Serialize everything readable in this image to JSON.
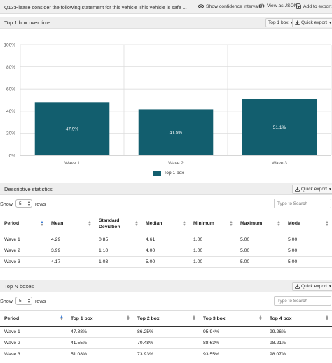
{
  "topbar": {
    "question": "Q13:Please consider the following statement for this vehicle This vehicle is safe ...",
    "show_ci": "Show confidence intervals",
    "view_json": "View as JSON",
    "add_export": "Add to export"
  },
  "chart_section": {
    "title": "Top 1 box over time",
    "dropdown": "Top 1 box",
    "quick_export": "Quick export"
  },
  "chart_data": {
    "type": "bar",
    "categories": [
      "Wave 1",
      "Wave 2",
      "Wave 3"
    ],
    "series": [
      {
        "name": "Top 1 box",
        "values": [
          47.9,
          41.5,
          51.1
        ]
      }
    ],
    "value_labels": [
      "47.9%",
      "41.5%",
      "51.1%"
    ],
    "y_ticks": [
      "0%",
      "20%",
      "40%",
      "60%",
      "80%",
      "100%"
    ],
    "ylim": [
      0,
      100
    ],
    "color": "#125e6e",
    "legend_position": "bottom",
    "grid": true
  },
  "desc_section": {
    "title": "Descriptive statistics",
    "quick_export": "Quick export",
    "show_label": "Show",
    "rows_value": "5",
    "rows_label": "rows",
    "search_placeholder": "Type to Search",
    "columns": [
      "Period",
      "Mean",
      "Standard Deviation",
      "Median",
      "Minimum",
      "Maximum",
      "Mode"
    ],
    "rows": [
      [
        "Wave 1",
        "4.29",
        "0.85",
        "4.61",
        "1.00",
        "5.00",
        "5.00"
      ],
      [
        "Wave 2",
        "3.99",
        "1.10",
        "4.00",
        "1.00",
        "5.00",
        "5.00"
      ],
      [
        "Wave 3",
        "4.17",
        "1.03",
        "5.00",
        "1.00",
        "5.00",
        "5.00"
      ]
    ]
  },
  "topn_section": {
    "title": "Top N boxes",
    "quick_export": "Quick export",
    "show_label": "Show",
    "rows_value": "5",
    "rows_label": "rows",
    "search_placeholder": "Type to Search",
    "columns": [
      "Period",
      "Top 1 box",
      "Top 2 box",
      "Top 3 box",
      "Top 4 box"
    ],
    "rows": [
      [
        "Wave 1",
        "47.88%",
        "86.25%",
        "95.94%",
        "99.26%"
      ],
      [
        "Wave 2",
        "41.55%",
        "70.48%",
        "88.63%",
        "98.21%"
      ],
      [
        "Wave 3",
        "51.08%",
        "73.93%",
        "93.55%",
        "98.07%"
      ]
    ]
  }
}
